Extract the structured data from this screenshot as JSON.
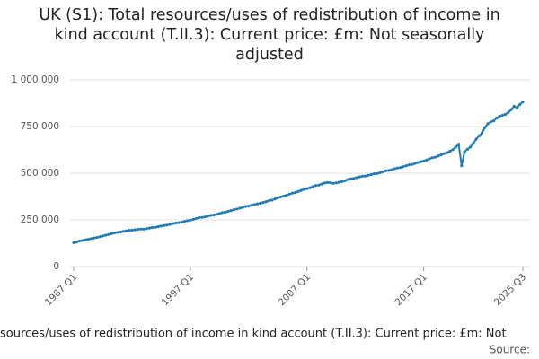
{
  "chart_data": {
    "type": "line",
    "title": "UK (S1): Total resources/uses of redistribution of income in kind account (T.II.3): Current price: £m: Not seasonally adjusted",
    "footer": "sources/uses of redistribution of income in kind account (T.II.3): Current price: £m: Not",
    "source": "Source:",
    "categories": [
      "1987 Q1",
      null,
      null,
      null,
      null,
      null,
      null,
      null,
      null,
      null,
      null,
      null,
      null,
      null,
      null,
      null,
      null,
      null,
      null,
      null,
      null,
      null,
      null,
      null,
      null,
      null,
      null,
      null,
      null,
      null,
      null,
      null,
      null,
      null,
      null,
      null,
      null,
      null,
      null,
      null,
      "1997 Q1",
      null,
      null,
      null,
      null,
      null,
      null,
      null,
      null,
      null,
      null,
      null,
      null,
      null,
      null,
      null,
      null,
      null,
      null,
      null,
      null,
      null,
      null,
      null,
      null,
      null,
      null,
      null,
      null,
      null,
      null,
      null,
      null,
      null,
      null,
      null,
      null,
      null,
      null,
      null,
      "2007 Q1",
      null,
      null,
      null,
      null,
      null,
      null,
      null,
      null,
      null,
      null,
      null,
      null,
      null,
      null,
      null,
      null,
      null,
      null,
      null,
      null,
      null,
      null,
      null,
      null,
      null,
      null,
      null,
      null,
      null,
      null,
      null,
      null,
      null,
      null,
      null,
      null,
      null,
      null,
      null,
      "2017 Q1",
      null,
      null,
      null,
      null,
      null,
      null,
      null,
      null,
      null,
      null,
      null,
      null,
      null,
      null,
      null,
      null,
      null,
      null,
      null,
      null,
      null,
      null,
      null,
      null,
      null,
      null,
      null,
      null,
      null,
      null,
      null,
      null,
      null,
      "2025 Q3"
    ],
    "series": [
      {
        "color": "#1f7bb5",
        "values": [
          128000,
          131000,
          137000,
          140000,
          143000,
          146000,
          150000,
          153000,
          156000,
          160000,
          164000,
          168000,
          172000,
          176000,
          180000,
          183000,
          185000,
          188000,
          191000,
          194000,
          195000,
          197000,
          199000,
          201000,
          200000,
          203000,
          206000,
          209000,
          210000,
          214000,
          217000,
          220000,
          222000,
          226000,
          230000,
          233000,
          235000,
          238000,
          242000,
          246000,
          248000,
          253000,
          257000,
          262000,
          263000,
          266000,
          270000,
          274000,
          276000,
          280000,
          284000,
          289000,
          291000,
          296000,
          300000,
          305000,
          308000,
          313000,
          317000,
          322000,
          324000,
          328000,
          332000,
          336000,
          339000,
          343000,
          348000,
          353000,
          356000,
          362000,
          368000,
          373000,
          377000,
          382000,
          388000,
          393000,
          396000,
          402000,
          408000,
          414000,
          417000,
          422000,
          428000,
          434000,
          436000,
          442000,
          447000,
          450000,
          449000,
          446000,
          448000,
          452000,
          455000,
          460000,
          466000,
          470000,
          472000,
          476000,
          480000,
          484000,
          485000,
          489000,
          493000,
          497000,
          498000,
          503000,
          508000,
          513000,
          515000,
          519000,
          524000,
          528000,
          530000,
          535000,
          540000,
          545000,
          547000,
          552000,
          557000,
          562000,
          565000,
          571000,
          577000,
          583000,
          586000,
          592000,
          598000,
          605000,
          610000,
          618000,
          626000,
          640000,
          655000,
          540000,
          615000,
          628000,
          640000,
          660000,
          682000,
          700000,
          715000,
          745000,
          765000,
          775000,
          780000,
          795000,
          805000,
          810000,
          815000,
          825000,
          840000,
          858000,
          850000,
          868000,
          882000
        ]
      }
    ],
    "ylim": [
      0,
      1000000
    ],
    "yticks": [
      0,
      {
        "value": 250000,
        "label": "250 000"
      },
      {
        "value": 500000,
        "label": "500 000"
      },
      {
        "value": 750000,
        "label": "750 000"
      },
      {
        "value": 1000000,
        "label": "1 000 000"
      }
    ],
    "grid": true
  }
}
